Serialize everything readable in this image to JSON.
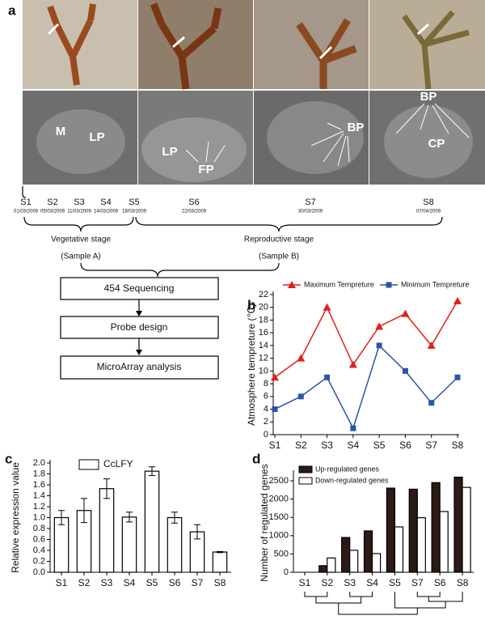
{
  "panel_labels": [
    "a",
    "b",
    "c",
    "d"
  ],
  "panel_a": {
    "image_labels": [
      "M",
      "LP",
      "LP",
      "FP",
      "BP",
      "BP",
      "CP"
    ],
    "stages": [
      {
        "name": "S1",
        "date": "01/03/2009"
      },
      {
        "name": "S2",
        "date": "05/03/2009"
      },
      {
        "name": "S3",
        "date": "11/03/2009"
      },
      {
        "name": "S4",
        "date": "14/03/2009"
      },
      {
        "name": "S5",
        "date": "18/03/2009"
      },
      {
        "name": "S6",
        "date": "22/03/2009"
      },
      {
        "name": "S7",
        "date": "30/03/2009"
      },
      {
        "name": "S8",
        "date": "07/04/2009"
      }
    ],
    "phases": [
      {
        "name": "Vegetative stage",
        "sample": "(Sample A)"
      },
      {
        "name": "Reproductive stage",
        "sample": "(Sample B)"
      }
    ],
    "flow": [
      "454 Sequencing",
      "Probe design",
      "MicroArray analysis"
    ]
  },
  "chart_data": [
    {
      "type": "line",
      "ylabel": "Atmosphere tempreture (℃)",
      "categories": [
        "S1",
        "S2",
        "S3",
        "S4",
        "S5",
        "S6",
        "S7",
        "S8"
      ],
      "series": [
        {
          "name": "Maximum Tempreture",
          "color": "#e0201b",
          "marker": "triangle",
          "values": [
            9,
            12,
            20,
            11,
            17,
            19,
            14,
            21
          ]
        },
        {
          "name": "Minimum Tempreture",
          "color": "#2a56a5",
          "marker": "square",
          "values": [
            4,
            6,
            9,
            1,
            14,
            10,
            5,
            9
          ]
        }
      ],
      "ylim": [
        0,
        22
      ],
      "yticks": [
        0,
        2,
        4,
        6,
        8,
        10,
        12,
        14,
        16,
        18,
        20,
        22
      ],
      "legend": "top"
    },
    {
      "type": "bar",
      "ylabel": "Relative expression value",
      "categories": [
        "S1",
        "S2",
        "S3",
        "S4",
        "S5",
        "S6",
        "S7",
        "S8"
      ],
      "series": [
        {
          "name": "CcLFY",
          "color": "#ffffff",
          "values": [
            1.0,
            1.13,
            1.53,
            1.01,
            1.85,
            1.0,
            0.74,
            0.37
          ],
          "errors": [
            0.13,
            0.22,
            0.18,
            0.09,
            0.08,
            0.1,
            0.13,
            0.01
          ]
        }
      ],
      "ylim": [
        0,
        2
      ],
      "yticks": [
        {
          "value": 0,
          "label": "0.0"
        },
        {
          "value": 0.2,
          "label": "0.2"
        },
        {
          "value": 0.4,
          "label": "0.4"
        },
        {
          "value": 0.6,
          "label": "0.6"
        },
        {
          "value": 0.8,
          "label": "0.8"
        },
        {
          "value": 1,
          "label": "1.0"
        },
        {
          "value": 1.2,
          "label": "1.2"
        },
        {
          "value": 1.4,
          "label": "1.4"
        },
        {
          "value": 1.6,
          "label": "1.6"
        },
        {
          "value": 1.8,
          "label": "1.8"
        },
        {
          "value": 2,
          "label": "2.0"
        }
      ],
      "legend": "top-left"
    },
    {
      "type": "bar",
      "ylabel": "Number of regulated genes",
      "categories": [
        "S1",
        "S2",
        "S3",
        "S4",
        "S5",
        "S7",
        "S6",
        "S8"
      ],
      "series": [
        {
          "name": "Up-regulated genes",
          "color": "#2b1a15",
          "values": [
            0,
            180,
            950,
            1130,
            2300,
            2270,
            2450,
            2600
          ]
        },
        {
          "name": "Down-regulated genes",
          "color": "#ffffff",
          "values": [
            0,
            390,
            600,
            510,
            1240,
            1490,
            1660,
            2320
          ]
        }
      ],
      "ylim": [
        0,
        2700
      ],
      "yticks": [
        0,
        500,
        1000,
        1500,
        2000,
        2500
      ],
      "legend": "top-left"
    }
  ]
}
